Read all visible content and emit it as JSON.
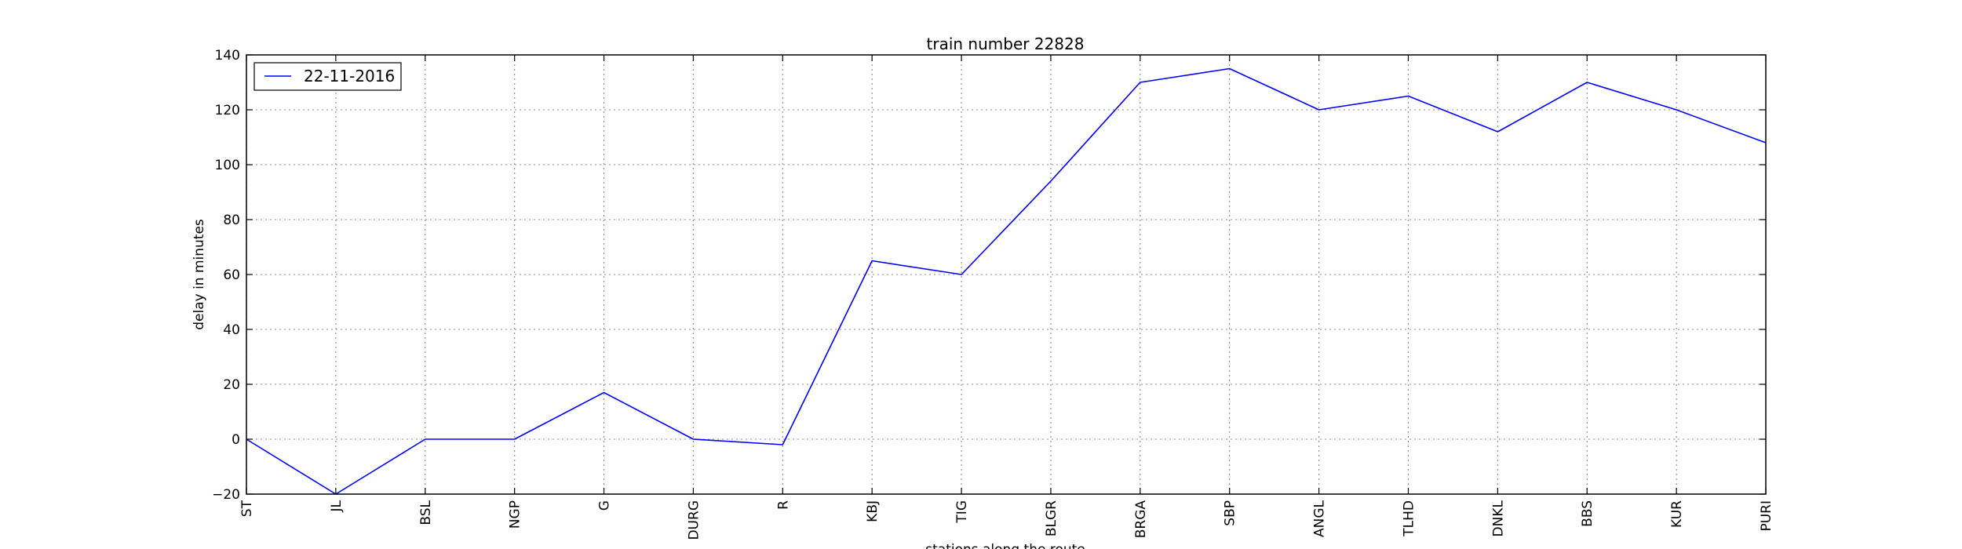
{
  "chart_data": {
    "type": "line",
    "title": "train number 22828",
    "xlabel": "stations along the route",
    "ylabel": "delay in minutes",
    "categories": [
      "ST",
      "JL",
      "BSL",
      "NGP",
      "G",
      "DURG",
      "R",
      "KBJ",
      "TIG",
      "BLGR",
      "BRGA",
      "SBP",
      "ANGL",
      "TLHD",
      "DNKL",
      "BBS",
      "KUR",
      "PURI"
    ],
    "series": [
      {
        "name": "22-11-2016",
        "color": "#0000ff",
        "values": [
          0,
          -20,
          0,
          0,
          17,
          0,
          -2,
          65,
          60,
          94,
          130,
          135,
          120,
          125,
          112,
          130,
          120,
          108
        ]
      }
    ],
    "ylim": [
      -20,
      140
    ],
    "yticks": [
      -20,
      0,
      20,
      40,
      60,
      80,
      100,
      120,
      140
    ],
    "grid": true,
    "legend_position": "top-left"
  }
}
